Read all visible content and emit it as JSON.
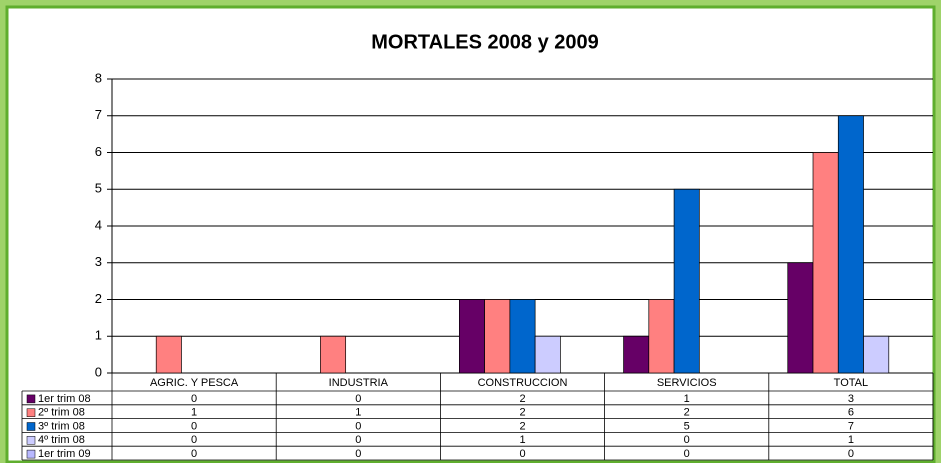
{
  "chart_data": {
    "type": "bar",
    "title": "MORTALES 2008 y 2009",
    "categories": [
      "AGRIC. Y PESCA",
      "INDUSTRIA",
      "CONSTRUCCION",
      "SERVICIOS",
      "TOTAL"
    ],
    "series": [
      {
        "name": "1er trim 08",
        "color": "#660066",
        "values": [
          0,
          0,
          2,
          1,
          3
        ]
      },
      {
        "name": "2º trim 08",
        "color": "#ff8080",
        "values": [
          1,
          1,
          2,
          2,
          6
        ]
      },
      {
        "name": "3º trim 08",
        "color": "#0066cc",
        "values": [
          0,
          0,
          2,
          5,
          7
        ]
      },
      {
        "name": "4º trim 08",
        "color": "#ccccff",
        "values": [
          0,
          0,
          1,
          0,
          1
        ]
      },
      {
        "name": "1er trim 09",
        "color": "#b8b8ff",
        "values": [
          0,
          0,
          0,
          0,
          0
        ]
      }
    ],
    "ylim": [
      0,
      8
    ],
    "yticks": [
      0,
      1,
      2,
      3,
      4,
      5,
      6,
      7,
      8
    ],
    "grid": true
  }
}
